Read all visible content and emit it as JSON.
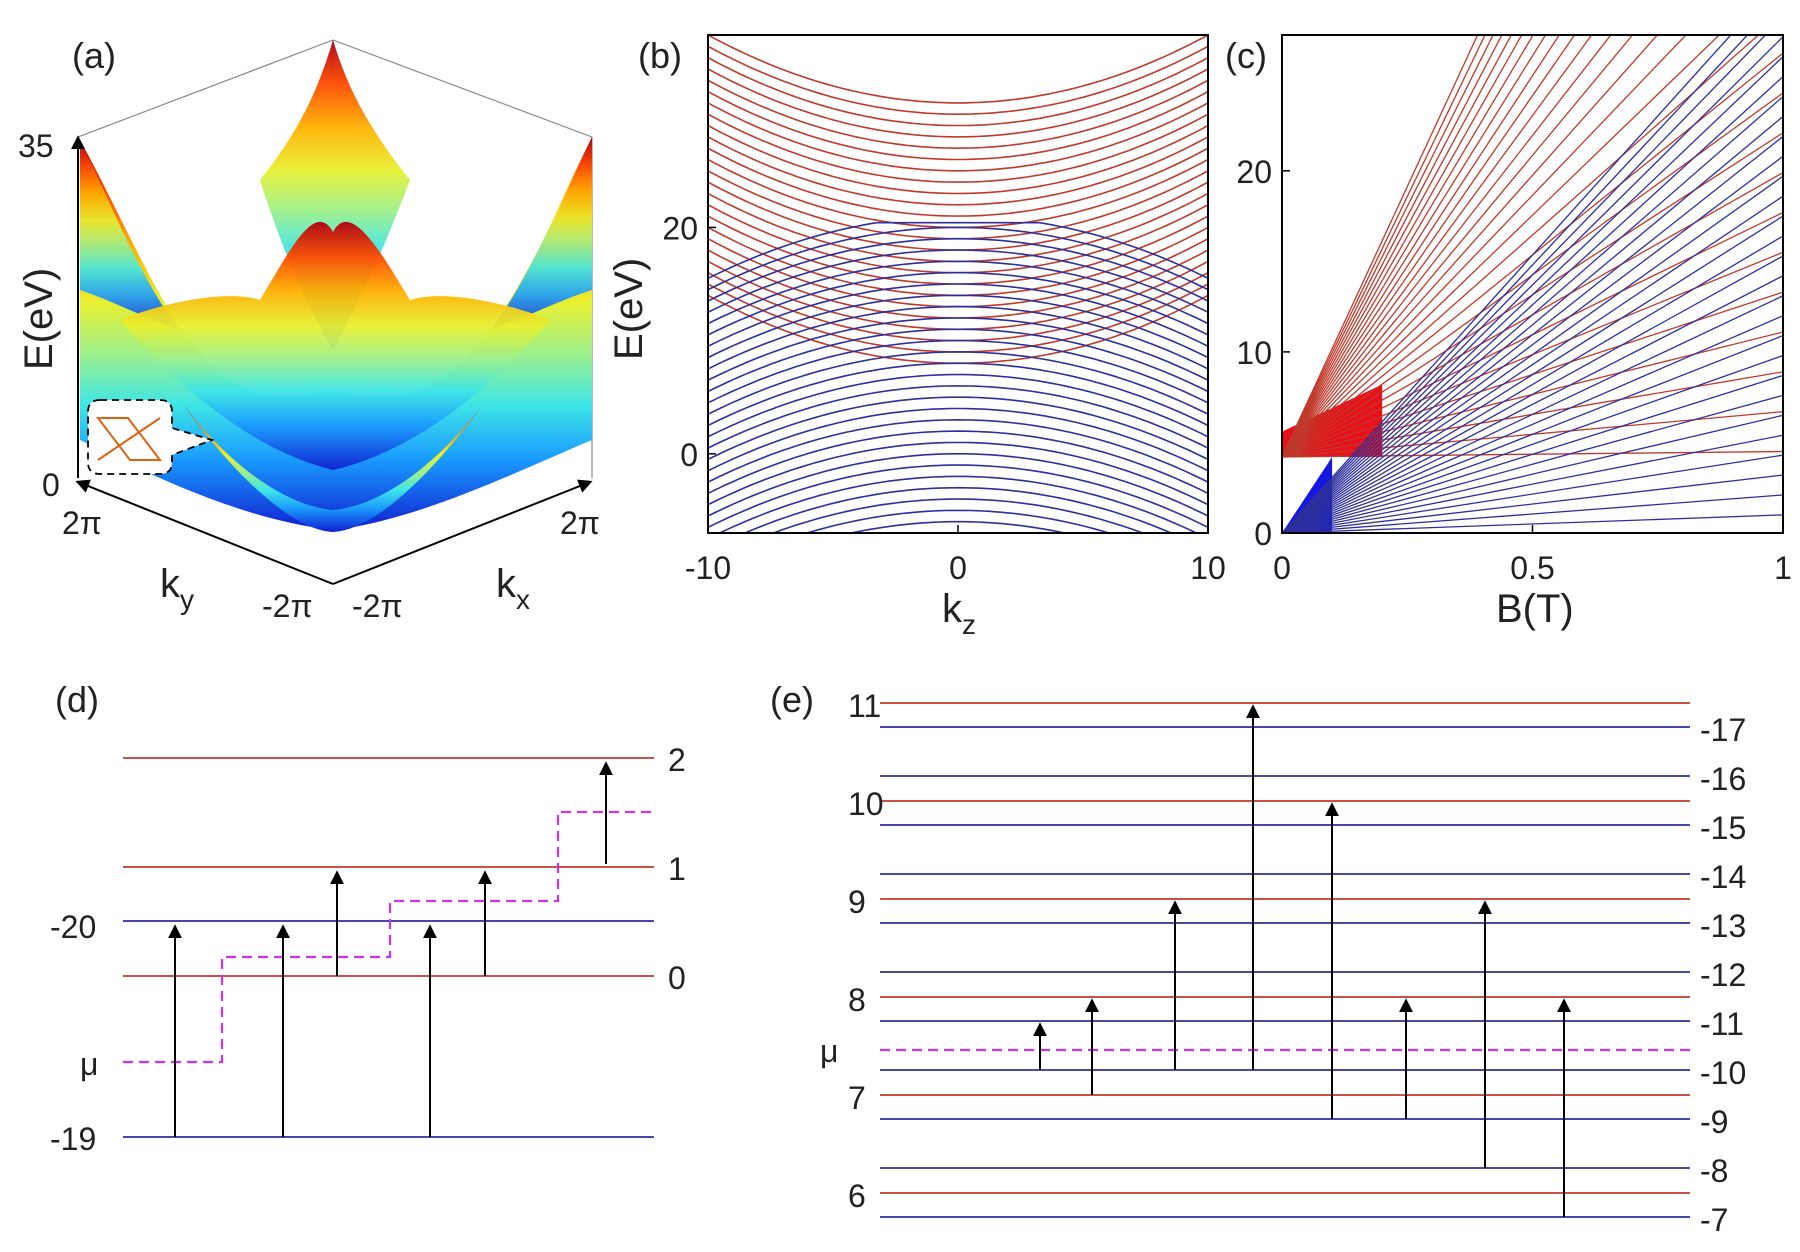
{
  "colors": {
    "red": "#c0392b",
    "blue": "#2c2f9e",
    "mu": "#cc33ee",
    "frame": "#000000"
  },
  "panels": {
    "a": {
      "label": "(a)",
      "ylabel": "E(eV)",
      "zticks": [
        "35",
        "0"
      ],
      "ky_label": "k",
      "ky_sub": "y",
      "kx_label": "k",
      "kx_sub": "x",
      "ky_ticks": [
        "2π",
        "-2π"
      ],
      "kx_ticks": [
        "-2π",
        "2π"
      ]
    },
    "b": {
      "label": "(b)",
      "ylabel": "E(eV)",
      "xlabel": "k",
      "xsub": "z"
    },
    "c": {
      "label": "(c)",
      "xlabel": "B(T)"
    },
    "d": {
      "label": "(d)",
      "left_labels": [
        "-20",
        "μ",
        "-19"
      ],
      "right_labels": [
        "2",
        "1",
        "0"
      ]
    },
    "e": {
      "label": "(e)",
      "mu_label": "μ",
      "left_labels": [
        "11",
        "10",
        "9",
        "8",
        "7",
        "6"
      ],
      "right_labels": [
        "-17",
        "-16",
        "-15",
        "-14",
        "-13",
        "-12",
        "-11",
        "-10",
        "-9",
        "-8",
        "-7"
      ]
    }
  },
  "chart_data": [
    {
      "type": "surface",
      "panel": "a",
      "title": "",
      "zlabel": "E(eV)",
      "zlim": [
        0,
        35
      ],
      "xlabel": "kx",
      "ylabel": "ky",
      "xlim": [
        "-2π",
        "2π"
      ],
      "ylim": [
        "-2π",
        "2π"
      ],
      "colormap": "jet",
      "description_data": {
        "surfaces": 2,
        "inset": "crossing lines"
      }
    },
    {
      "type": "line",
      "panel": "b",
      "xlabel": "kz",
      "ylabel": "E(eV)",
      "xlim": [
        -10,
        10
      ],
      "ylim": [
        -7,
        37
      ],
      "xticks": [
        -10,
        0,
        10
      ],
      "yticks": [
        0,
        20
      ],
      "series": [
        {
          "name": "",
          "color": "red",
          "kind": "upward parabola",
          "count": 24,
          "min_first": 8,
          "min_step": 1.0,
          "curvature": 0.06
        },
        {
          "name": "",
          "color": "blue",
          "kind": "downward parabola",
          "count": 20,
          "max_first": 1.0,
          "max_step": 1.0,
          "curvature": 0.055
        }
      ]
    },
    {
      "type": "line",
      "panel": "c",
      "xlabel": "B(T)",
      "ylabel": "",
      "xlim": [
        0,
        1
      ],
      "ylim": [
        0,
        27.5
      ],
      "xticks": [
        0,
        0.5,
        1
      ],
      "yticks": [
        0,
        10,
        20
      ],
      "series": [
        {
          "name": "",
          "color": "red",
          "kind": "fan",
          "origin": [
            0,
            4.2
          ],
          "count": 28,
          "slope_first": 0.3,
          "slope_step": 2.2
        },
        {
          "name": "",
          "color": "blue",
          "kind": "fan",
          "origin": [
            0,
            0
          ],
          "count": 28,
          "slope_first": 1.0,
          "slope_step": 1.1
        }
      ]
    },
    {
      "type": "level-diagram",
      "panel": "d",
      "levels": [
        {
          "color": "red",
          "label": "2"
        },
        {
          "color": "red",
          "label": "1"
        },
        {
          "color": "blue",
          "label": "-20"
        },
        {
          "color": "red",
          "label": "0"
        },
        {
          "color": "blue",
          "label": "-19"
        }
      ],
      "mu_steps": 4,
      "transitions": [
        {
          "from": "-19",
          "to": "-20"
        },
        {
          "from": "-19",
          "to": "-20"
        },
        {
          "from": "0",
          "to": "1"
        },
        {
          "from": "-19",
          "to": "-20"
        },
        {
          "from": "0",
          "to": "1"
        },
        {
          "from": "1",
          "to": "2"
        }
      ]
    },
    {
      "type": "level-diagram",
      "panel": "e",
      "red_levels": [
        "11",
        "10",
        "9",
        "8",
        "7",
        "6"
      ],
      "blue_levels": [
        "-17",
        "-16",
        "-15",
        "-14",
        "-13",
        "-12",
        "-11",
        "-10",
        "-9",
        "-8",
        "-7"
      ],
      "transitions": [
        {
          "from": "-10",
          "to": "-11"
        },
        {
          "from": "7",
          "to": "8"
        },
        {
          "from": "-10",
          "to": "9"
        },
        {
          "from": "-10",
          "to": "11"
        },
        {
          "from": "-9",
          "to": "10"
        },
        {
          "from": "-9",
          "to": "8"
        },
        {
          "from": "-8",
          "to": "9"
        },
        {
          "from": "-7",
          "to": "8"
        }
      ]
    }
  ]
}
